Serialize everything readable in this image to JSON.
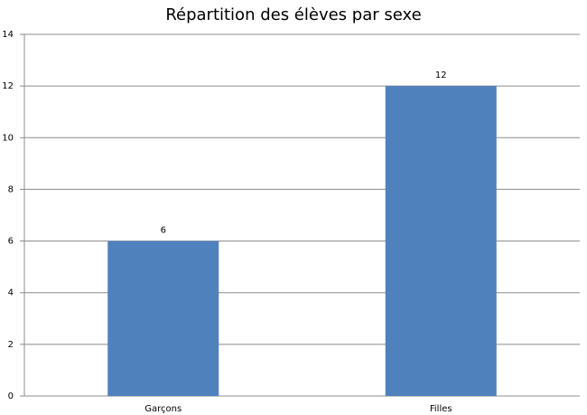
{
  "chart_data": {
    "type": "bar",
    "title": "Répartition des élèves par sexe",
    "categories": [
      "Garçons",
      "Filles"
    ],
    "values": [
      6,
      12
    ],
    "color": "#4f81bd",
    "ylim": [
      0,
      14
    ],
    "yticks": [
      0,
      2,
      4,
      6,
      8,
      10,
      12,
      14
    ],
    "grid": true
  }
}
